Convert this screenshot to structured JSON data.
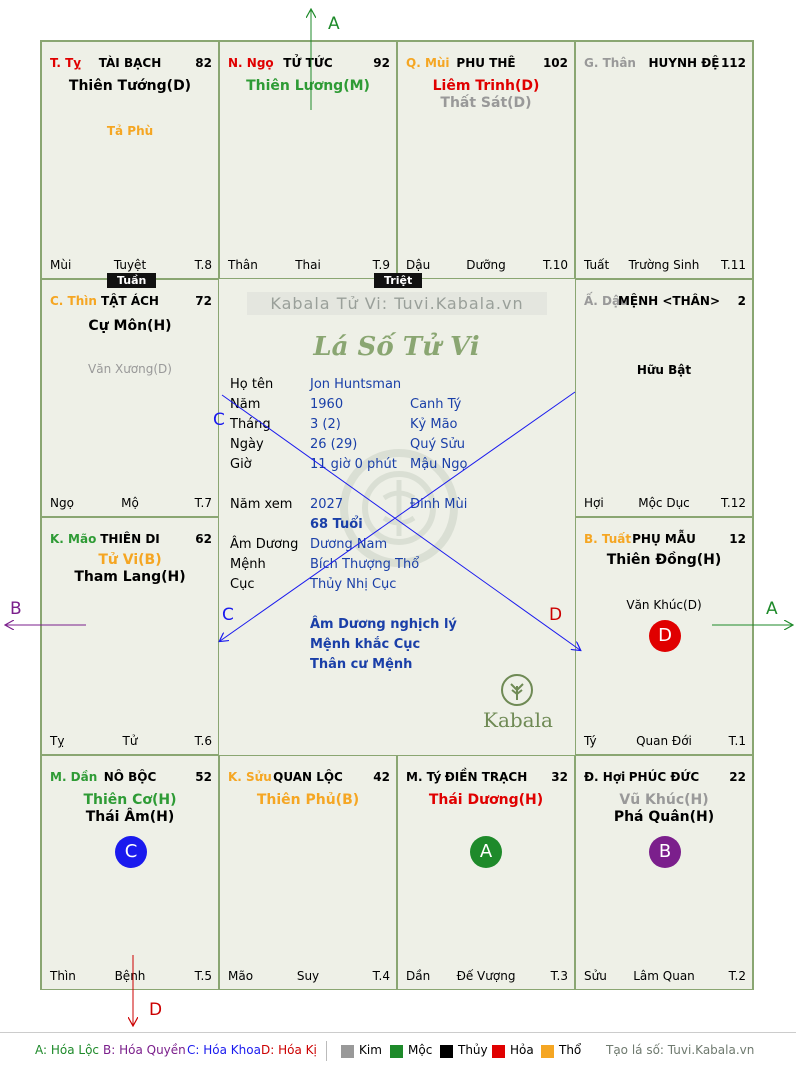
{
  "cells": {
    "ty": {
      "stem": "T. Tỵ",
      "stem_color": "#e00000",
      "palace": "TÀI BẠCH",
      "age": "82",
      "main1": "Thiên Tướng(D)",
      "main1_color": "#000000",
      "minor1": "Tả Phù",
      "minor1_color": "#f5a623",
      "branch": "Mùi",
      "stage": "Tuyệt",
      "month": "T.8"
    },
    "ngo": {
      "stem": "N. Ngọ",
      "stem_color": "#e00000",
      "palace": "TỬ TỨC",
      "age": "92",
      "main1": "Thiên Lương(M)",
      "main1_color": "#2e9b35",
      "branch": "Thân",
      "stage": "Thai",
      "month": "T.9"
    },
    "mui": {
      "stem": "Q. Mùi",
      "stem_color": "#f5a623",
      "palace": "PHU THÊ",
      "age": "102",
      "main1": "Liêm Trinh(D)",
      "main1_color": "#e00000",
      "main2": "Thất Sát(D)",
      "main2_color": "#999999",
      "branch": "Dậu",
      "stage": "Dưỡng",
      "month": "T.10"
    },
    "than": {
      "stem": "G. Thân",
      "stem_color": "#999999",
      "palace": "HUYNH ĐỆ",
      "age": "112",
      "branch": "Tuất",
      "stage": "Trường Sinh",
      "month": "T.11"
    },
    "thin": {
      "stem": "C. Thìn",
      "stem_color": "#f5a623",
      "palace": "TẬT ÁCH",
      "age": "72",
      "main1": "Cự Môn(H)",
      "main1_color": "#000000",
      "minor1": "Văn Xương(D)",
      "minor1_color": "#999999",
      "branch": "Ngọ",
      "stage": "Mộ",
      "month": "T.7"
    },
    "dau": {
      "stem": "Ấ. Dậu",
      "stem_color": "#999999",
      "palace": "MỆNH <THÂN>",
      "age": "2",
      "minor1": "Hữu Bật",
      "minor1_color": "#000000",
      "branch": "Hợi",
      "stage": "Mộc Dục",
      "month": "T.12"
    },
    "mao": {
      "stem": "K. Mão",
      "stem_color": "#2e9b35",
      "palace": "THIÊN DI",
      "age": "62",
      "main1": "Tử Vi(B)",
      "main1_color": "#f5a623",
      "main2": "Tham Lang(H)",
      "main2_color": "#000000",
      "branch": "Tỵ",
      "stage": "Tử",
      "month": "T.6"
    },
    "tuat": {
      "stem": "B. Tuất",
      "stem_color": "#f5a623",
      "palace": "PHỤ MẪU",
      "age": "12",
      "main1": "Thiên Đồng(H)",
      "main1_color": "#000000",
      "minor1": "Văn Khúc(D)",
      "minor1_color": "#000000",
      "badge": "D",
      "badge_color": "#e00000",
      "branch": "Tý",
      "stage": "Quan Đới",
      "month": "T.1"
    },
    "dan": {
      "stem": "M. Dần",
      "stem_color": "#2e9b35",
      "palace": "NÔ BỘC",
      "age": "52",
      "main1": "Thiên Cơ(H)",
      "main1_color": "#2e9b35",
      "main2": "Thái Âm(H)",
      "main2_color": "#000000",
      "badge": "C",
      "badge_color": "#1a1aee",
      "branch": "Thìn",
      "stage": "Bệnh",
      "month": "T.5"
    },
    "suu": {
      "stem": "K. Sửu",
      "stem_color": "#f5a623",
      "palace": "QUAN LỘC",
      "age": "42",
      "main1": "Thiên Phủ(B)",
      "main1_color": "#f5a623",
      "branch": "Mão",
      "stage": "Suy",
      "month": "T.4"
    },
    "tyy": {
      "stem": "M. Tý",
      "stem_color": "#000000",
      "palace": "ĐIỀN TRẠCH",
      "age": "32",
      "main1": "Thái Dương(H)",
      "main1_color": "#e00000",
      "badge": "A",
      "badge_color": "#1e8a2a",
      "branch": "Dần",
      "stage": "Đế Vượng",
      "month": "T.3"
    },
    "hoi": {
      "stem": "Đ. Hợi",
      "stem_color": "#000000",
      "palace": "PHÚC ĐỨC",
      "age": "22",
      "main1": "Vũ Khúc(H)",
      "main1_color": "#999999",
      "main2": "Phá Quân(H)",
      "main2_color": "#000000",
      "badge": "B",
      "badge_color": "#7b1f8c",
      "branch": "Sửu",
      "stage": "Lâm Quan",
      "month": "T.2"
    }
  },
  "labels": {
    "tuan": "Tuần",
    "triet": "Triệt"
  },
  "center": {
    "watermark": "Kabala Tử Vi: Tuvi.Kabala.vn",
    "title": "Lá Số Tử Vi",
    "ho_ten_k": "Họ tên",
    "ho_ten": "Jon Huntsman",
    "nam_k": "Năm",
    "nam": "1960",
    "nam_can": "Canh Tý",
    "thang_k": "Tháng",
    "thang": "3  (2)",
    "thang_can": "Kỷ Mão",
    "ngay_k": "Ngày",
    "ngay": "26  (29)",
    "ngay_can": "Quý Sửu",
    "gio_k": "Giờ",
    "gio": "11 giờ 0 phút",
    "gio_can": "Mậu Ngọ",
    "namxem_k": "Năm xem",
    "namxem": "2027",
    "namxem_can": "Đinh Mùi",
    "tuoi": "68 Tuổi",
    "amduong_k": "Âm Dương",
    "amduong": "Dương Nam",
    "menh_k": "Mệnh",
    "menh": "Bích Thượng Thổ",
    "cuc_k": "Cục",
    "cuc": "Thủy Nhị Cục",
    "note1": "Âm Dương nghịch lý",
    "note2": "Mệnh khắc Cục",
    "note3": "Thân cư Mệnh",
    "brand": "Kabala"
  },
  "arrows": {
    "A": "A",
    "B": "B",
    "C": "C",
    "D": "D"
  },
  "legend": {
    "a": "A: Hóa Lộc",
    "b": "B: Hóa Quyền",
    "c": "C: Hóa Khoa",
    "d": "D: Hóa Kị",
    "kim": "Kim",
    "moc": "Mộc",
    "thuy": "Thủy",
    "hoa": "Hỏa",
    "tho": "Thổ",
    "site": "Tạo lá số: Tuvi.Kabala.vn",
    "colors": {
      "kim": "#999999",
      "moc": "#1e8a2a",
      "thuy": "#000000",
      "hoa": "#e00000",
      "tho": "#f5a623"
    }
  }
}
